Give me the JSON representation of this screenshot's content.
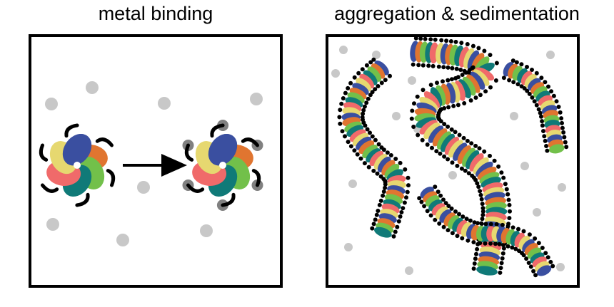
{
  "panels": {
    "left": {
      "title": "metal binding"
    },
    "right": {
      "title": "aggregation & sedimentation"
    }
  },
  "colors": {
    "frame": "#000000",
    "metal_ion": "#c8c8c8",
    "bound_metal": "#808080",
    "arrow": "#000000",
    "subunits": [
      "#3a4fa0",
      "#e07530",
      "#72c04a",
      "#107a78",
      "#f06a6a",
      "#e6d870"
    ],
    "hub": "#ffffff"
  }
}
